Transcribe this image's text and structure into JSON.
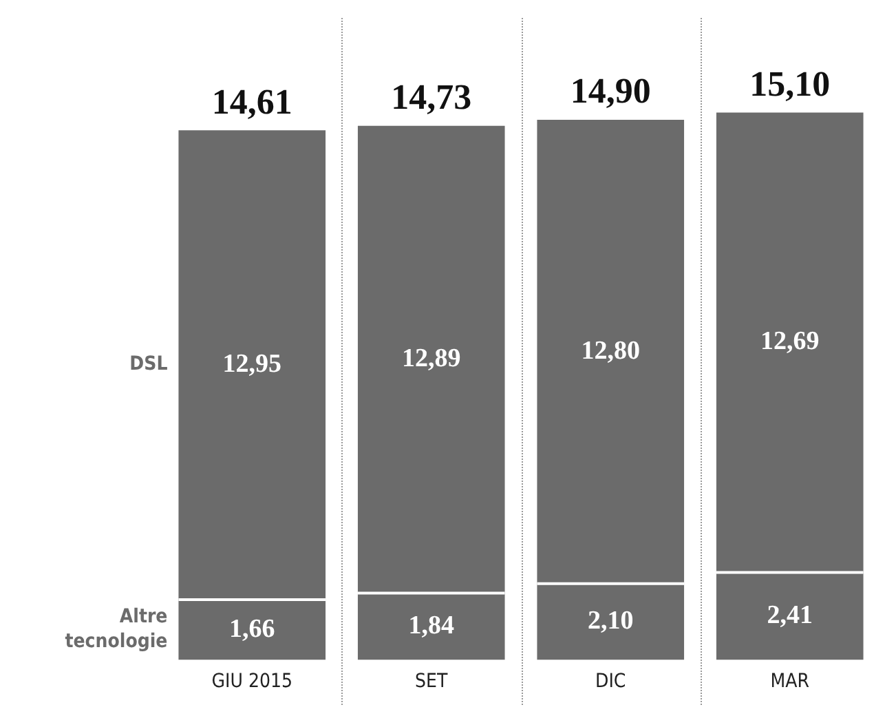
{
  "chart_data": {
    "type": "bar",
    "stacked": true,
    "categories": [
      "GIU 2015",
      "SET",
      "DIC",
      "MAR"
    ],
    "series": [
      {
        "name": "Altre tecnologie",
        "color": "#6b6b6b",
        "values": [
          1.66,
          1.84,
          2.1,
          2.41
        ],
        "value_labels": [
          "1,66",
          "1,84",
          "2,10",
          "2,41"
        ]
      },
      {
        "name": "DSL",
        "color": "#6b6b6b",
        "values": [
          12.95,
          12.89,
          12.8,
          12.69
        ],
        "value_labels": [
          "12,95",
          "12,89",
          "12,80",
          "12,69"
        ]
      }
    ],
    "totals": [
      "14,61",
      "14,73",
      "14,90",
      "15,10"
    ],
    "legend": false,
    "grid": false
  }
}
